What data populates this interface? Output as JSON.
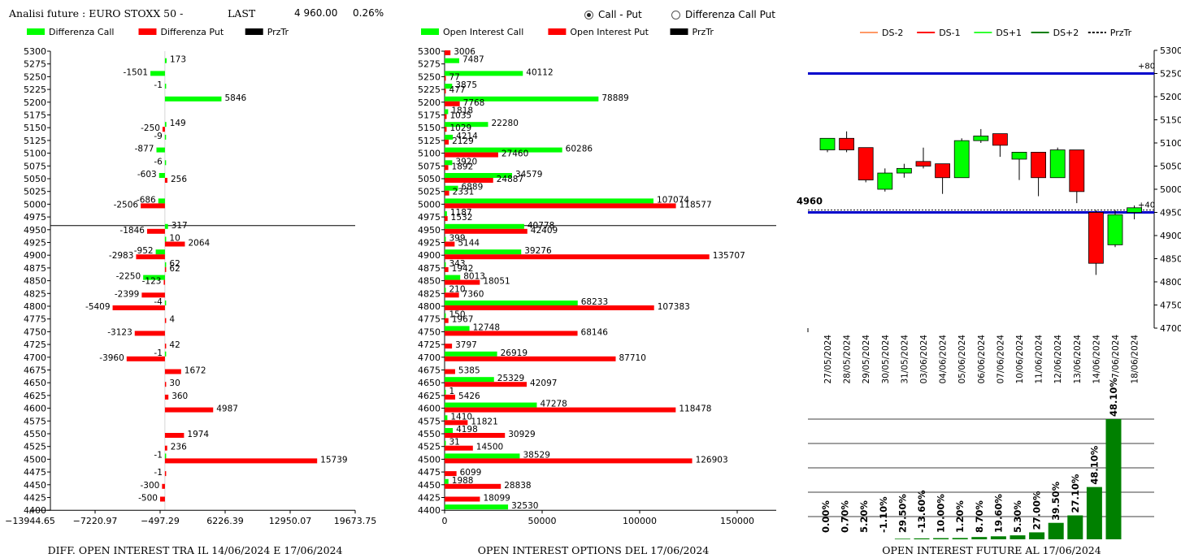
{
  "header": {
    "title": "Analisi future : EURO STOXX 50 -",
    "last_label": "LAST",
    "last_value": "4 960.00",
    "change": "0.26%",
    "radio_options": [
      {
        "label": "Call - Put",
        "selected": true
      },
      {
        "label": "Differenza Call Put",
        "selected": false
      }
    ]
  },
  "colors": {
    "call": "#00ff00",
    "put": "#ff0000",
    "przTr": "#000000",
    "hline": "#0000cc",
    "ds_minus2": "#ff9966",
    "ds_minus1": "#ff0000",
    "ds_plus1": "#33ff33",
    "ds_plus2": "#008000",
    "oi_bar": "#008000"
  },
  "strikes": [
    "5300",
    "5275",
    "5250",
    "5225",
    "5200",
    "5175",
    "5150",
    "5125",
    "5100",
    "5075",
    "5050",
    "5025",
    "5000",
    "4975",
    "4950",
    "4925",
    "4900",
    "4875",
    "4850",
    "4825",
    "4800",
    "4775",
    "4750",
    "4725",
    "4700",
    "4675",
    "4650",
    "4625",
    "4600",
    "4575",
    "4550",
    "4525",
    "4500",
    "4475",
    "4450",
    "4425",
    "4400"
  ],
  "chart_data": [
    {
      "type": "bar",
      "orientation": "horizontal",
      "legend": [
        "Differenza Call",
        "Differenza Put",
        "PrzTr"
      ],
      "xticks": [
        "−13944.65",
        "−7220.97",
        "−497.29",
        "6226.39",
        "12950.07",
        "19673.75"
      ],
      "xlim": [
        -13944.65,
        19673.75
      ],
      "footer": "DIFF. OPEN INTEREST TRA IL 14/06/2024 E 17/06/2024",
      "przTr_level": "4950",
      "call": [
        {
          "s": "5275",
          "v": 173
        },
        {
          "s": "5250",
          "v": -1501
        },
        {
          "s": "5225",
          "v": -1
        },
        {
          "s": "5200",
          "v": 5846
        },
        {
          "s": "5150",
          "v": 149
        },
        {
          "s": "5125",
          "v": -9
        },
        {
          "s": "5100",
          "v": -877
        },
        {
          "s": "5075",
          "v": -6
        },
        {
          "s": "5050",
          "v": -603
        },
        {
          "s": "5000",
          "v": -686
        },
        {
          "s": "4950",
          "v": 317
        },
        {
          "s": "4925",
          "v": 10
        },
        {
          "s": "4900",
          "v": -952
        },
        {
          "s": "4875",
          "v": 62
        },
        {
          "s": "4850",
          "v": -2250
        },
        {
          "s": "4800",
          "v": -4
        },
        {
          "s": "4700",
          "v": -1
        },
        {
          "s": "4500",
          "v": -1
        }
      ],
      "put": [
        {
          "s": "5150",
          "v": -250
        },
        {
          "s": "5050",
          "v": 256
        },
        {
          "s": "5000",
          "v": -2506
        },
        {
          "s": "4950",
          "v": -1846
        },
        {
          "s": "4925",
          "v": 2064
        },
        {
          "s": "4900",
          "v": -2983
        },
        {
          "s": "4875",
          "v": 62
        },
        {
          "s": "4850",
          "v": -123
        },
        {
          "s": "4825",
          "v": -2399
        },
        {
          "s": "4800",
          "v": -5409
        },
        {
          "s": "4775",
          "v": 4
        },
        {
          "s": "4750",
          "v": -3123
        },
        {
          "s": "4725",
          "v": 42
        },
        {
          "s": "4700",
          "v": -3960
        },
        {
          "s": "4675",
          "v": 1672
        },
        {
          "s": "4650",
          "v": 30
        },
        {
          "s": "4625",
          "v": 360
        },
        {
          "s": "4600",
          "v": 4987
        },
        {
          "s": "4550",
          "v": 1974
        },
        {
          "s": "4525",
          "v": 236
        },
        {
          "s": "4500",
          "v": 15739
        },
        {
          "s": "4475",
          "v": -1
        },
        {
          "s": "4450",
          "v": -300
        },
        {
          "s": "4425",
          "v": -500
        }
      ]
    },
    {
      "type": "bar",
      "orientation": "horizontal",
      "legend": [
        "Open Interest Call",
        "Open Interest Put",
        "PrzTr"
      ],
      "xticks": [
        "0",
        "50000",
        "100000",
        "150000"
      ],
      "xlim": [
        0,
        170000
      ],
      "footer": "OPEN INTEREST OPTIONS DEL 17/06/2024",
      "przTr_level": "4950",
      "call": [
        {
          "s": "5275",
          "v": 7487
        },
        {
          "s": "5250",
          "v": 40112
        },
        {
          "s": "5225",
          "v": 3875
        },
        {
          "s": "5200",
          "v": 78889
        },
        {
          "s": "5175",
          "v": 1818
        },
        {
          "s": "5150",
          "v": 22280
        },
        {
          "s": "5125",
          "v": 4214
        },
        {
          "s": "5100",
          "v": 60286
        },
        {
          "s": "5075",
          "v": 3920
        },
        {
          "s": "5050",
          "v": 34579
        },
        {
          "s": "5025",
          "v": 6889
        },
        {
          "s": "5000",
          "v": 107074
        },
        {
          "s": "4975",
          "v": 1187
        },
        {
          "s": "4950",
          "v": 40778
        },
        {
          "s": "4925",
          "v": 399
        },
        {
          "s": "4900",
          "v": 39276
        },
        {
          "s": "4875",
          "v": 343
        },
        {
          "s": "4850",
          "v": 8013
        },
        {
          "s": "4825",
          "v": 210
        },
        {
          "s": "4800",
          "v": 68233
        },
        {
          "s": "4775",
          "v": 150
        },
        {
          "s": "4750",
          "v": 12748
        },
        {
          "s": "4700",
          "v": 26919
        },
        {
          "s": "4650",
          "v": 25329
        },
        {
          "s": "4625",
          "v": 1
        },
        {
          "s": "4600",
          "v": 47278
        },
        {
          "s": "4575",
          "v": 1410
        },
        {
          "s": "4550",
          "v": 4198
        },
        {
          "s": "4525",
          "v": 31
        },
        {
          "s": "4500",
          "v": 38529
        },
        {
          "s": "4450",
          "v": 1988
        },
        {
          "s": "4400",
          "v": 32530
        }
      ],
      "put": [
        {
          "s": "5300",
          "v": 3006
        },
        {
          "s": "5250",
          "v": 77
        },
        {
          "s": "5225",
          "v": 477
        },
        {
          "s": "5200",
          "v": 7768
        },
        {
          "s": "5175",
          "v": 1035
        },
        {
          "s": "5150",
          "v": 1029
        },
        {
          "s": "5125",
          "v": 2129
        },
        {
          "s": "5100",
          "v": 27460
        },
        {
          "s": "5075",
          "v": 1892
        },
        {
          "s": "5050",
          "v": 24887
        },
        {
          "s": "5025",
          "v": 2331
        },
        {
          "s": "5000",
          "v": 118577
        },
        {
          "s": "4975",
          "v": 1532
        },
        {
          "s": "4950",
          "v": 42409
        },
        {
          "s": "4925",
          "v": 5144
        },
        {
          "s": "4900",
          "v": 135707
        },
        {
          "s": "4875",
          "v": 1942
        },
        {
          "s": "4850",
          "v": 18051
        },
        {
          "s": "4825",
          "v": 7360
        },
        {
          "s": "4800",
          "v": 107383
        },
        {
          "s": "4775",
          "v": 1967
        },
        {
          "s": "4750",
          "v": 68146
        },
        {
          "s": "4725",
          "v": 3797
        },
        {
          "s": "4700",
          "v": 87710
        },
        {
          "s": "4675",
          "v": 5385
        },
        {
          "s": "4650",
          "v": 42097
        },
        {
          "s": "4625",
          "v": 5426
        },
        {
          "s": "4600",
          "v": 118478
        },
        {
          "s": "4575",
          "v": 11821
        },
        {
          "s": "4550",
          "v": 30929
        },
        {
          "s": "4525",
          "v": 14500
        },
        {
          "s": "4500",
          "v": 126903
        },
        {
          "s": "4475",
          "v": 6099
        },
        {
          "s": "4450",
          "v": 28838
        },
        {
          "s": "4425",
          "v": 18099
        }
      ]
    },
    {
      "type": "candlestick",
      "legend": [
        "DS-2",
        "DS-1",
        "DS+1",
        "DS+2",
        "PrzTr"
      ],
      "yticks": [
        "5300",
        "5250",
        "5200",
        "5150",
        "5100",
        "5050",
        "5000",
        "4950",
        "4900",
        "4850",
        "4800",
        "4750",
        "4700"
      ],
      "ylim": [
        4700,
        5300
      ],
      "dates": [
        "27/05/2024",
        "28/05/2024",
        "29/05/2024",
        "30/05/2024",
        "31/05/2024",
        "03/06/2024",
        "04/06/2024",
        "05/06/2024",
        "06/06/2024",
        "07/06/2024",
        "10/06/2024",
        "11/06/2024",
        "12/06/2024",
        "13/06/2024",
        "14/06/2024",
        "7/06/2024",
        "18/06/2024"
      ],
      "candles": [
        {
          "o": 5085,
          "h": 5110,
          "l": 5080,
          "c": 5110
        },
        {
          "o": 5110,
          "h": 5125,
          "l": 5080,
          "c": 5085
        },
        {
          "o": 5090,
          "h": 5090,
          "l": 5015,
          "c": 5020
        },
        {
          "o": 5000,
          "h": 5045,
          "l": 4995,
          "c": 5035
        },
        {
          "o": 5035,
          "h": 5055,
          "l": 5025,
          "c": 5045
        },
        {
          "o": 5060,
          "h": 5090,
          "l": 5045,
          "c": 5050
        },
        {
          "o": 5055,
          "h": 5055,
          "l": 4990,
          "c": 5025
        },
        {
          "o": 5025,
          "h": 5110,
          "l": 5025,
          "c": 5105
        },
        {
          "o": 5105,
          "h": 5130,
          "l": 5100,
          "c": 5115
        },
        {
          "o": 5120,
          "h": 5120,
          "l": 5070,
          "c": 5095
        },
        {
          "o": 5065,
          "h": 5080,
          "l": 5020,
          "c": 5080
        },
        {
          "o": 5080,
          "h": 5080,
          "l": 4985,
          "c": 5025
        },
        {
          "o": 5025,
          "h": 5090,
          "l": 5025,
          "c": 5085
        },
        {
          "o": 5085,
          "h": 5085,
          "l": 4970,
          "c": 4995
        },
        {
          "o": 4950,
          "h": 4955,
          "l": 4815,
          "c": 4840
        },
        {
          "o": 4880,
          "h": 4955,
          "l": 4875,
          "c": 4945
        },
        {
          "o": 4950,
          "h": 4965,
          "l": 4935,
          "c": 4960
        }
      ],
      "hlines": [
        {
          "value": 5250,
          "label": "+80"
        },
        {
          "value": 4950,
          "label": "+40"
        }
      ],
      "przTr": {
        "value": 4955,
        "label": "4960"
      }
    },
    {
      "type": "bar",
      "title": "OPEN INTEREST FUTURE AL 17/06/2024",
      "labels": [
        "0.00%",
        "0.70%",
        "5.20%",
        "-1.10%",
        "29.50%",
        "-13.60%",
        "10.00%",
        "1.20%",
        "8.70%",
        "19.60%",
        "5.30%",
        "27.00%",
        "39.50%",
        "27.10%",
        "48.10%",
        "48.10%"
      ],
      "heights": [
        0,
        0,
        0,
        0,
        0.5,
        0.8,
        1,
        1.1,
        1.9,
        2.5,
        3.3,
        5.8,
        13.7,
        19.9,
        43.5,
        100
      ]
    }
  ]
}
